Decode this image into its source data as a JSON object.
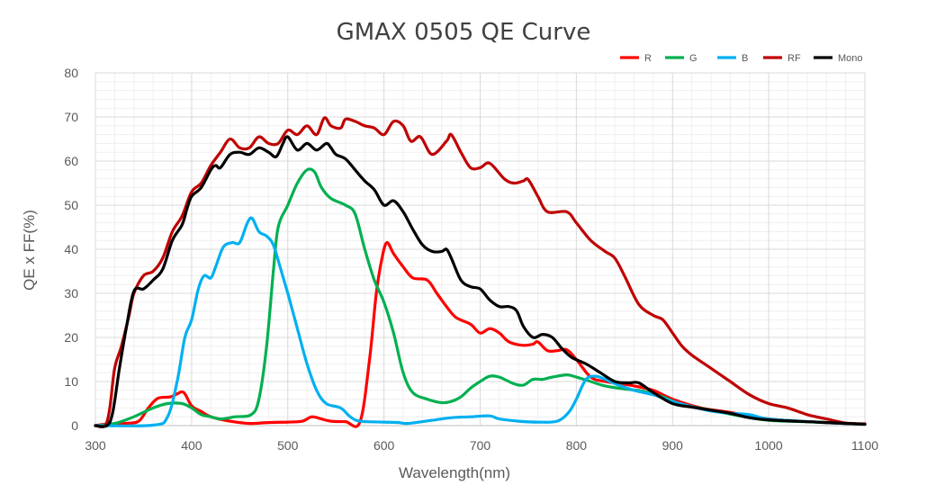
{
  "chart_data": {
    "type": "line",
    "title": "GMAX 0505 QE  Curve",
    "xlabel": "Wavelength(nm)",
    "ylabel": "QE x FF(%)",
    "xlim": [
      300,
      1100
    ],
    "ylim": [
      0,
      80
    ],
    "xticks": [
      300,
      400,
      500,
      600,
      700,
      800,
      900,
      1000,
      1100
    ],
    "yticks": [
      0,
      10,
      20,
      30,
      40,
      50,
      60,
      70,
      80
    ],
    "grid": true,
    "legend_position": "top-right",
    "series": [
      {
        "name": "R",
        "color": "#ff0000",
        "points": [
          [
            300,
            0
          ],
          [
            310,
            0.3
          ],
          [
            330,
            0.5
          ],
          [
            345,
            1
          ],
          [
            355,
            4
          ],
          [
            365,
            6.2
          ],
          [
            378,
            6.5
          ],
          [
            385,
            7.2
          ],
          [
            392,
            7.5
          ],
          [
            400,
            4.5
          ],
          [
            410,
            3.2
          ],
          [
            420,
            2
          ],
          [
            440,
            1
          ],
          [
            460,
            0.5
          ],
          [
            480,
            0.7
          ],
          [
            500,
            0.8
          ],
          [
            515,
            1
          ],
          [
            525,
            2
          ],
          [
            535,
            1.5
          ],
          [
            545,
            1
          ],
          [
            560,
            0.9
          ],
          [
            575,
            0.8
          ],
          [
            585,
            15
          ],
          [
            592,
            30
          ],
          [
            598,
            38
          ],
          [
            603,
            41.5
          ],
          [
            610,
            39
          ],
          [
            620,
            36
          ],
          [
            630,
            33.5
          ],
          [
            645,
            33
          ],
          [
            655,
            30
          ],
          [
            665,
            27
          ],
          [
            675,
            24.5
          ],
          [
            690,
            23
          ],
          [
            700,
            21
          ],
          [
            710,
            22
          ],
          [
            720,
            21
          ],
          [
            730,
            19
          ],
          [
            745,
            18.2
          ],
          [
            755,
            18.5
          ],
          [
            760,
            19
          ],
          [
            770,
            17
          ],
          [
            780,
            17
          ],
          [
            790,
            17.2
          ],
          [
            800,
            15
          ],
          [
            815,
            11
          ],
          [
            830,
            10
          ],
          [
            845,
            9.5
          ],
          [
            860,
            9
          ],
          [
            880,
            8
          ],
          [
            900,
            6
          ],
          [
            930,
            4
          ],
          [
            960,
            3
          ],
          [
            1000,
            1.5
          ],
          [
            1050,
            0.8
          ],
          [
            1100,
            0.3
          ]
        ]
      },
      {
        "name": "G",
        "color": "#00b050",
        "points": [
          [
            300,
            0
          ],
          [
            320,
            0.5
          ],
          [
            340,
            2
          ],
          [
            360,
            4
          ],
          [
            375,
            5
          ],
          [
            390,
            5
          ],
          [
            400,
            4
          ],
          [
            410,
            2.5
          ],
          [
            420,
            2
          ],
          [
            430,
            1.5
          ],
          [
            445,
            2
          ],
          [
            462,
            2.5
          ],
          [
            470,
            6
          ],
          [
            478,
            18
          ],
          [
            485,
            35
          ],
          [
            490,
            45
          ],
          [
            500,
            50
          ],
          [
            510,
            55
          ],
          [
            520,
            58
          ],
          [
            528,
            57.5
          ],
          [
            535,
            54
          ],
          [
            545,
            51.5
          ],
          [
            560,
            50
          ],
          [
            570,
            48
          ],
          [
            580,
            40
          ],
          [
            590,
            33
          ],
          [
            600,
            28
          ],
          [
            610,
            21
          ],
          [
            620,
            12
          ],
          [
            630,
            7.5
          ],
          [
            645,
            6
          ],
          [
            660,
            5.2
          ],
          [
            670,
            5.5
          ],
          [
            680,
            6.5
          ],
          [
            690,
            8.5
          ],
          [
            700,
            10
          ],
          [
            710,
            11.2
          ],
          [
            720,
            11
          ],
          [
            735,
            9.5
          ],
          [
            745,
            9.2
          ],
          [
            755,
            10.5
          ],
          [
            765,
            10.5
          ],
          [
            775,
            11
          ],
          [
            790,
            11.5
          ],
          [
            800,
            11
          ],
          [
            815,
            10
          ],
          [
            830,
            9
          ],
          [
            850,
            8.3
          ],
          [
            870,
            7.8
          ],
          [
            890,
            6.5
          ],
          [
            910,
            4.8
          ],
          [
            940,
            3.5
          ],
          [
            970,
            2.2
          ],
          [
            1000,
            1.2
          ],
          [
            1050,
            0.8
          ],
          [
            1100,
            0.3
          ]
        ]
      },
      {
        "name": "B",
        "color": "#00b0f0",
        "points": [
          [
            300,
            0
          ],
          [
            360,
            0.1
          ],
          [
            375,
            2
          ],
          [
            385,
            10
          ],
          [
            393,
            20
          ],
          [
            400,
            24
          ],
          [
            407,
            31
          ],
          [
            413,
            34
          ],
          [
            420,
            33.5
          ],
          [
            425,
            36
          ],
          [
            433,
            40.5
          ],
          [
            442,
            41.5
          ],
          [
            450,
            41.5
          ],
          [
            458,
            46
          ],
          [
            463,
            47
          ],
          [
            470,
            44
          ],
          [
            478,
            43
          ],
          [
            485,
            41
          ],
          [
            492,
            36
          ],
          [
            500,
            30
          ],
          [
            510,
            22
          ],
          [
            520,
            14
          ],
          [
            530,
            8
          ],
          [
            540,
            5
          ],
          [
            555,
            4
          ],
          [
            565,
            2
          ],
          [
            575,
            1
          ],
          [
            600,
            0.8
          ],
          [
            615,
            0.7
          ],
          [
            625,
            0.5
          ],
          [
            650,
            1.2
          ],
          [
            670,
            1.8
          ],
          [
            690,
            2
          ],
          [
            710,
            2.2
          ],
          [
            720,
            1.5
          ],
          [
            740,
            1
          ],
          [
            760,
            0.8
          ],
          [
            780,
            1
          ],
          [
            792,
            3
          ],
          [
            800,
            6
          ],
          [
            810,
            10.5
          ],
          [
            820,
            11.2
          ],
          [
            830,
            10.5
          ],
          [
            840,
            9.5
          ],
          [
            860,
            8
          ],
          [
            880,
            7
          ],
          [
            900,
            5.5
          ],
          [
            920,
            4.3
          ],
          [
            940,
            3.3
          ],
          [
            960,
            2.8
          ],
          [
            980,
            2.5
          ],
          [
            1000,
            1.5
          ],
          [
            1050,
            0.8
          ],
          [
            1100,
            0.3
          ]
        ]
      },
      {
        "name": "RF",
        "color": "#c00000",
        "points": [
          [
            300,
            0
          ],
          [
            310,
            0
          ],
          [
            315,
            4
          ],
          [
            320,
            13
          ],
          [
            327,
            18
          ],
          [
            335,
            25
          ],
          [
            340,
            30
          ],
          [
            350,
            34
          ],
          [
            360,
            35
          ],
          [
            370,
            38
          ],
          [
            380,
            44
          ],
          [
            390,
            47.5
          ],
          [
            400,
            53
          ],
          [
            410,
            55
          ],
          [
            420,
            59
          ],
          [
            430,
            62
          ],
          [
            440,
            65
          ],
          [
            450,
            63
          ],
          [
            460,
            63
          ],
          [
            470,
            65.5
          ],
          [
            480,
            64
          ],
          [
            490,
            64
          ],
          [
            500,
            67
          ],
          [
            510,
            66
          ],
          [
            520,
            68
          ],
          [
            530,
            66
          ],
          [
            538,
            69.8
          ],
          [
            545,
            68
          ],
          [
            555,
            67.5
          ],
          [
            560,
            69.5
          ],
          [
            570,
            69
          ],
          [
            580,
            68
          ],
          [
            590,
            67.5
          ],
          [
            600,
            66
          ],
          [
            610,
            69
          ],
          [
            620,
            68
          ],
          [
            628,
            64.5
          ],
          [
            638,
            65.5
          ],
          [
            650,
            61.5
          ],
          [
            665,
            64.5
          ],
          [
            670,
            66
          ],
          [
            680,
            62
          ],
          [
            690,
            58.5
          ],
          [
            700,
            58.5
          ],
          [
            710,
            59.5
          ],
          [
            725,
            56
          ],
          [
            735,
            55
          ],
          [
            745,
            55.5
          ],
          [
            750,
            55.8
          ],
          [
            760,
            52
          ],
          [
            770,
            48.5
          ],
          [
            790,
            48.5
          ],
          [
            800,
            46
          ],
          [
            815,
            42
          ],
          [
            830,
            39.5
          ],
          [
            840,
            38
          ],
          [
            850,
            34
          ],
          [
            865,
            27.5
          ],
          [
            880,
            25
          ],
          [
            890,
            24
          ],
          [
            900,
            21
          ],
          [
            910,
            18
          ],
          [
            920,
            16
          ],
          [
            940,
            13
          ],
          [
            960,
            10
          ],
          [
            980,
            7
          ],
          [
            1000,
            5
          ],
          [
            1020,
            4
          ],
          [
            1040,
            2.5
          ],
          [
            1060,
            1.5
          ],
          [
            1080,
            0.6
          ],
          [
            1100,
            0.4
          ]
        ]
      },
      {
        "name": "Mono",
        "color": "#000000",
        "points": [
          [
            300,
            0
          ],
          [
            312,
            0
          ],
          [
            318,
            3
          ],
          [
            325,
            13
          ],
          [
            332,
            22
          ],
          [
            340,
            30.5
          ],
          [
            350,
            31
          ],
          [
            360,
            33
          ],
          [
            370,
            35.5
          ],
          [
            380,
            42
          ],
          [
            390,
            45.5
          ],
          [
            395,
            49
          ],
          [
            400,
            52
          ],
          [
            410,
            54
          ],
          [
            420,
            58
          ],
          [
            425,
            59
          ],
          [
            430,
            58.5
          ],
          [
            440,
            61.5
          ],
          [
            450,
            62
          ],
          [
            460,
            61.5
          ],
          [
            470,
            63
          ],
          [
            480,
            62
          ],
          [
            488,
            61
          ],
          [
            495,
            64
          ],
          [
            500,
            65.5
          ],
          [
            510,
            62.5
          ],
          [
            520,
            64
          ],
          [
            530,
            62.5
          ],
          [
            540,
            64
          ],
          [
            545,
            63
          ],
          [
            550,
            61.5
          ],
          [
            560,
            60.5
          ],
          [
            570,
            58
          ],
          [
            580,
            55.5
          ],
          [
            590,
            53.5
          ],
          [
            600,
            50
          ],
          [
            610,
            51
          ],
          [
            620,
            48.5
          ],
          [
            630,
            44.5
          ],
          [
            640,
            41
          ],
          [
            650,
            39.5
          ],
          [
            660,
            39.5
          ],
          [
            665,
            40
          ],
          [
            670,
            38
          ],
          [
            680,
            33
          ],
          [
            690,
            31.5
          ],
          [
            700,
            31
          ],
          [
            710,
            28.5
          ],
          [
            720,
            27
          ],
          [
            730,
            27
          ],
          [
            738,
            26
          ],
          [
            745,
            22.5
          ],
          [
            755,
            20
          ],
          [
            765,
            20.7
          ],
          [
            775,
            20
          ],
          [
            785,
            17.5
          ],
          [
            795,
            15.5
          ],
          [
            810,
            14
          ],
          [
            825,
            12
          ],
          [
            840,
            10
          ],
          [
            855,
            9.7
          ],
          [
            865,
            9.7
          ],
          [
            880,
            7.5
          ],
          [
            900,
            5
          ],
          [
            920,
            4.2
          ],
          [
            940,
            3.5
          ],
          [
            960,
            2.8
          ],
          [
            980,
            1.8
          ],
          [
            1000,
            1.3
          ],
          [
            1050,
            0.8
          ],
          [
            1100,
            0.3
          ]
        ]
      }
    ]
  }
}
